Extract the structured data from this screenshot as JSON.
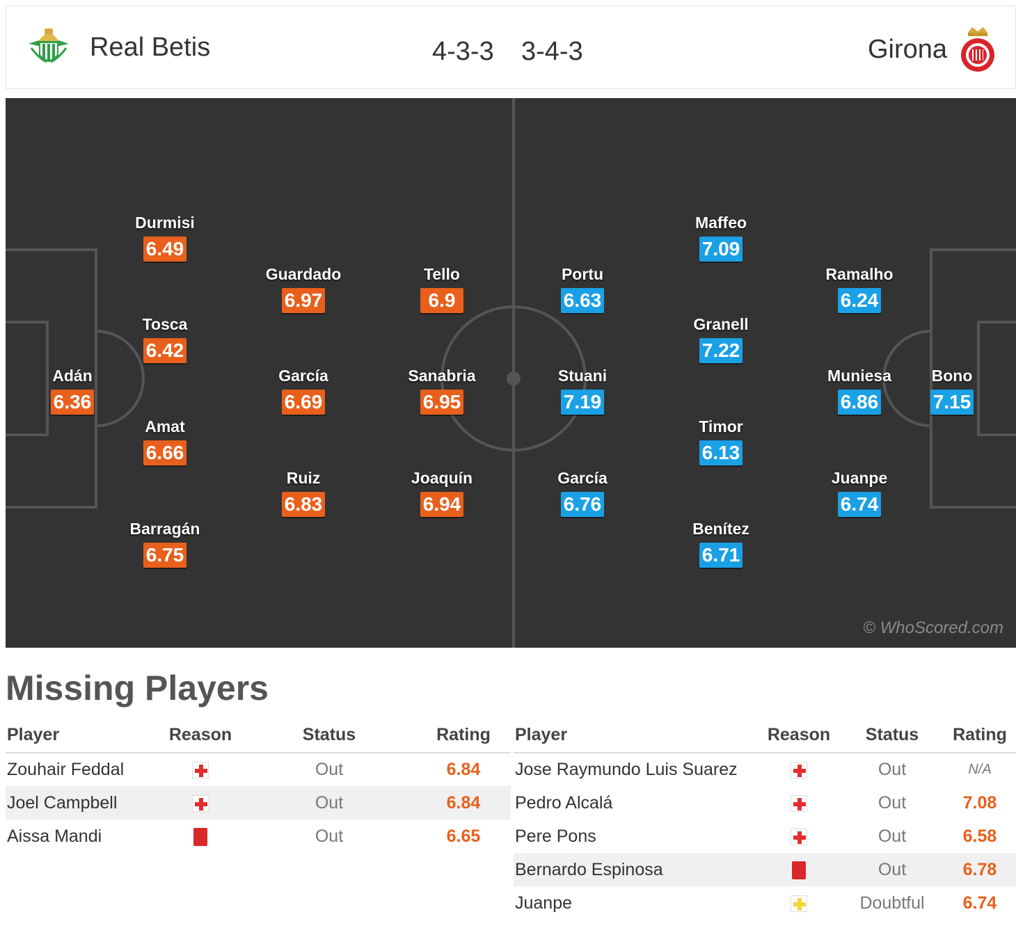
{
  "header": {
    "home": {
      "name": "Real Betis",
      "formation": "4-3-3"
    },
    "away": {
      "name": "Girona",
      "formation": "3-4-3"
    }
  },
  "pitch": {
    "watermark": "© WhoScored.com",
    "home_players": [
      {
        "name": "Adán",
        "rating": "6.36"
      },
      {
        "name": "Durmisi",
        "rating": "6.49"
      },
      {
        "name": "Tosca",
        "rating": "6.42"
      },
      {
        "name": "Amat",
        "rating": "6.66"
      },
      {
        "name": "Barragán",
        "rating": "6.75"
      },
      {
        "name": "Guardado",
        "rating": "6.97"
      },
      {
        "name": "García",
        "rating": "6.69"
      },
      {
        "name": "Ruiz",
        "rating": "6.83"
      },
      {
        "name": "Tello",
        "rating": "6.9"
      },
      {
        "name": "Sanabria",
        "rating": "6.95"
      },
      {
        "name": "Joaquín",
        "rating": "6.94"
      }
    ],
    "away_players": [
      {
        "name": "Portu",
        "rating": "6.63"
      },
      {
        "name": "Stuani",
        "rating": "7.19"
      },
      {
        "name": "García",
        "rating": "6.76"
      },
      {
        "name": "Maffeo",
        "rating": "7.09"
      },
      {
        "name": "Granell",
        "rating": "7.22"
      },
      {
        "name": "Timor",
        "rating": "6.13"
      },
      {
        "name": "Benítez",
        "rating": "6.71"
      },
      {
        "name": "Ramalho",
        "rating": "6.24"
      },
      {
        "name": "Muniesa",
        "rating": "6.86"
      },
      {
        "name": "Juanpe",
        "rating": "6.74"
      },
      {
        "name": "Bono",
        "rating": "7.15"
      }
    ]
  },
  "missing": {
    "title": "Missing Players",
    "columns": {
      "player": "Player",
      "reason": "Reason",
      "status": "Status",
      "rating": "Rating"
    },
    "home": [
      {
        "player": "Zouhair Feddal",
        "reason": "injury-icon",
        "status": "Out",
        "rating": "6.84"
      },
      {
        "player": "Joel Campbell",
        "reason": "injury-icon",
        "status": "Out",
        "rating": "6.84"
      },
      {
        "player": "Aissa Mandi",
        "reason": "red-card-icon",
        "status": "Out",
        "rating": "6.65"
      }
    ],
    "away": [
      {
        "player": "Jose Raymundo Luis Suarez",
        "reason": "injury-icon",
        "status": "Out",
        "rating": "N/A"
      },
      {
        "player": "Pedro Alcalá",
        "reason": "injury-icon",
        "status": "Out",
        "rating": "7.08"
      },
      {
        "player": "Pere Pons",
        "reason": "injury-icon",
        "status": "Out",
        "rating": "6.58"
      },
      {
        "player": "Bernardo Espinosa",
        "reason": "red-card-icon",
        "status": "Out",
        "rating": "6.78"
      },
      {
        "player": "Juanpe",
        "reason": "doubtful-icon",
        "status": "Doubtful",
        "rating": "6.74"
      }
    ]
  },
  "colors": {
    "home_rating": "#e8601c",
    "away_rating": "#1aa0e5",
    "pitch": "#333333"
  }
}
